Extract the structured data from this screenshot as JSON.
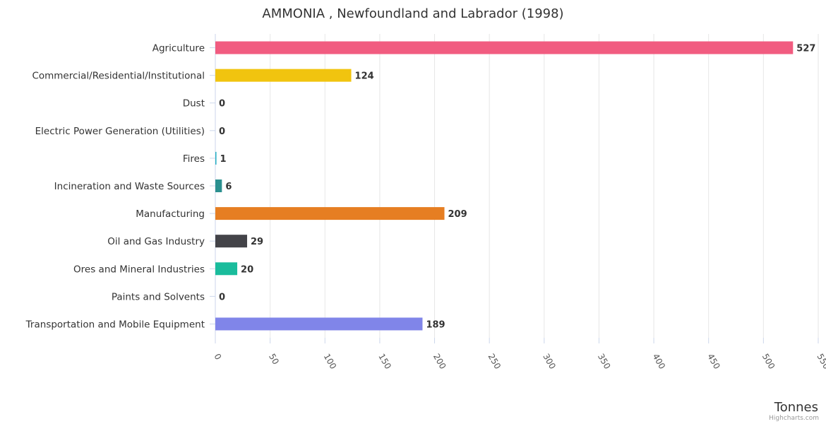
{
  "chart_data": {
    "type": "bar",
    "orientation": "horizontal",
    "title": "AMMONIA , Newfoundland and Labrador (1998)",
    "xlabel": "",
    "ylabel": "Tonnes",
    "categories": [
      "Agriculture",
      "Commercial/Residential/Institutional",
      "Dust",
      "Electric Power Generation (Utilities)",
      "Fires",
      "Incineration and Waste Sources",
      "Manufacturing",
      "Oil and Gas Industry",
      "Ores and Mineral Industries",
      "Paints and Solvents",
      "Transportation and Mobile Equipment"
    ],
    "values": [
      527,
      124,
      0,
      0,
      1,
      6,
      209,
      29,
      20,
      0,
      189
    ],
    "colors": [
      "#f15c80",
      "#f1c40f",
      "#2b908f",
      "#90ed7d",
      "#2ab0c5",
      "#2b908f",
      "#e67e22",
      "#434348",
      "#1abc9c",
      "#8085e9",
      "#8085e9"
    ],
    "ylim": [
      0,
      550
    ],
    "ticks": [
      0,
      50,
      100,
      150,
      200,
      250,
      300,
      350,
      400,
      450,
      500,
      550
    ],
    "grid": true,
    "legend": "none"
  },
  "credits": "Highcharts.com"
}
